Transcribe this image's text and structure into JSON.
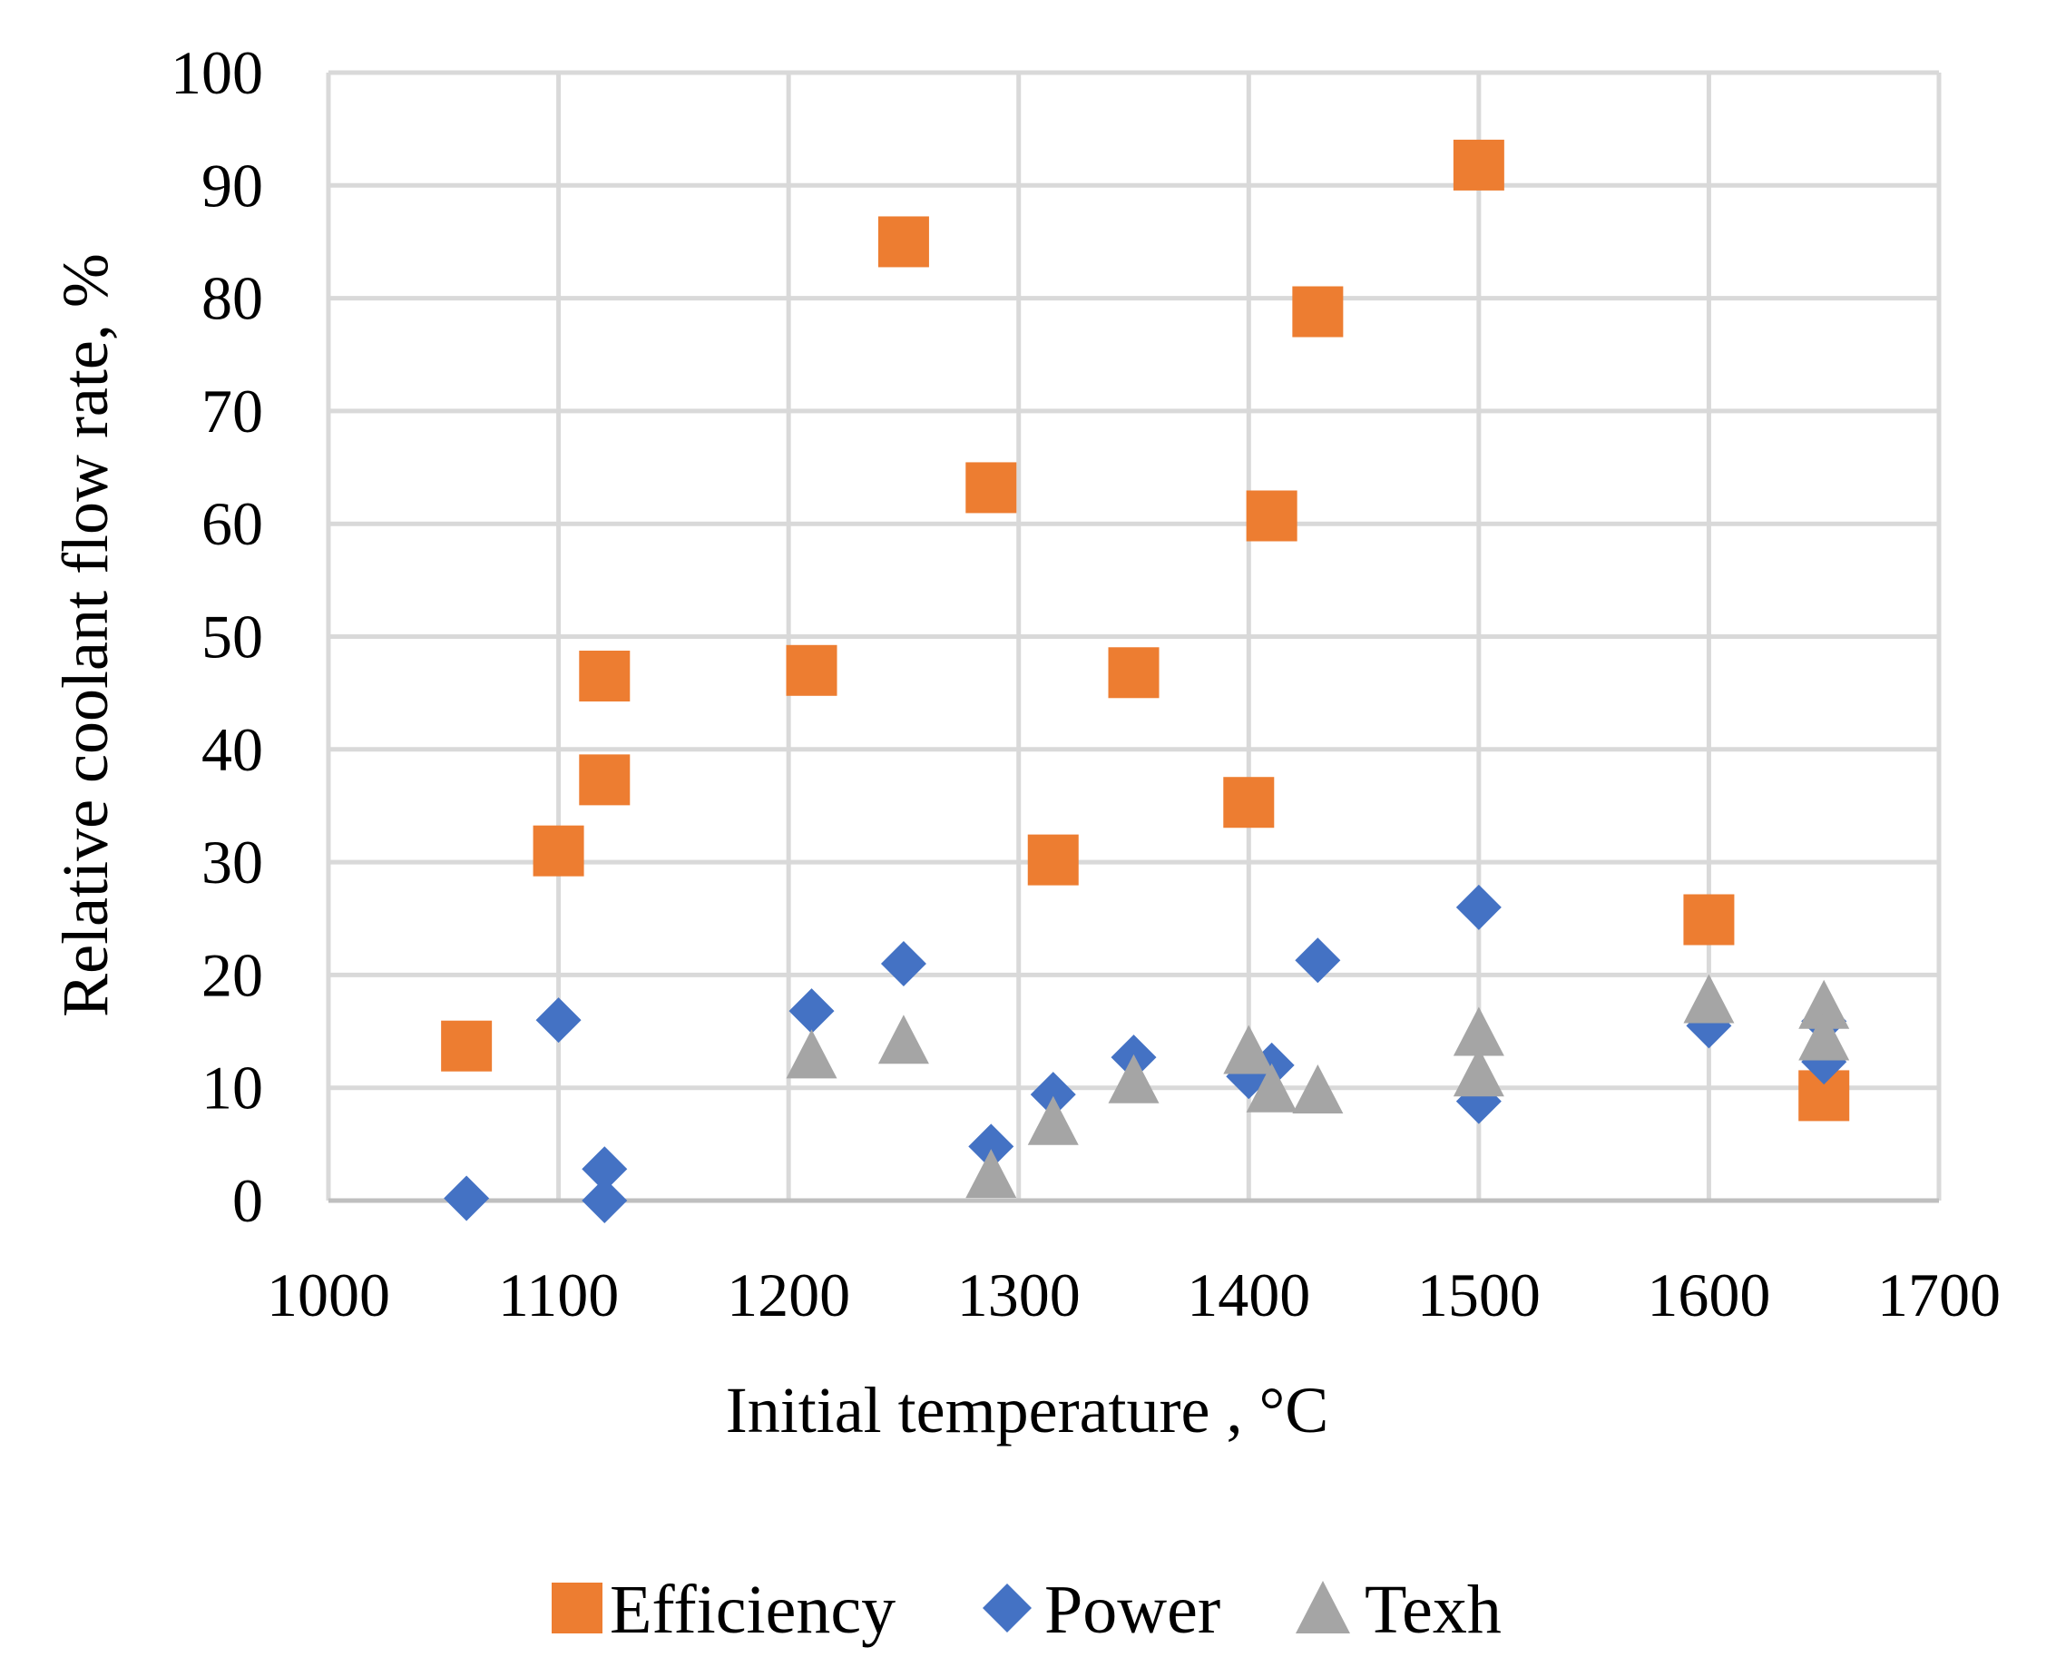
{
  "chart_data": {
    "type": "scatter",
    "title": "",
    "xlabel": "Initial temperature , °C",
    "ylabel": "Relative coolant flow rate, %",
    "xlim": [
      1000,
      1700
    ],
    "ylim": [
      0,
      100
    ],
    "x_ticks": [
      "1000",
      "1100",
      "1200",
      "1300",
      "1400",
      "1500",
      "1600",
      "1700"
    ],
    "y_ticks": [
      "0",
      "10",
      "20",
      "30",
      "40",
      "50",
      "60",
      "70",
      "80",
      "90",
      "100"
    ],
    "grid": true,
    "legend_position": "bottom",
    "series": [
      {
        "name": "Efficiency",
        "marker": "square",
        "color": "#ED7D31",
        "points": [
          [
            1060,
            13.7
          ],
          [
            1100,
            31
          ],
          [
            1120,
            46.5
          ],
          [
            1120,
            37.3
          ],
          [
            1210,
            47
          ],
          [
            1250,
            85
          ],
          [
            1288,
            63.2
          ],
          [
            1315,
            30.2
          ],
          [
            1350,
            46.8
          ],
          [
            1400,
            35.3
          ],
          [
            1410,
            60.7
          ],
          [
            1430,
            78.8
          ],
          [
            1500,
            91.8
          ],
          [
            1600,
            24.9
          ],
          [
            1650,
            9.3
          ]
        ]
      },
      {
        "name": "Power",
        "marker": "diamond",
        "color": "#4472C4",
        "points": [
          [
            1060,
            0.2
          ],
          [
            1100,
            16
          ],
          [
            1120,
            2.8
          ],
          [
            1120,
            0
          ],
          [
            1210,
            16.8
          ],
          [
            1250,
            21
          ],
          [
            1288,
            4.8
          ],
          [
            1315,
            9.4
          ],
          [
            1350,
            12.7
          ],
          [
            1400,
            11
          ],
          [
            1410,
            12
          ],
          [
            1430,
            21.3
          ],
          [
            1500,
            26
          ],
          [
            1500,
            8.8
          ],
          [
            1600,
            15.5
          ],
          [
            1650,
            15.9
          ],
          [
            1650,
            12.3
          ]
        ]
      },
      {
        "name": "Texh",
        "marker": "triangle",
        "color": "#A5A5A5",
        "points": [
          [
            1210,
            13
          ],
          [
            1250,
            14.3
          ],
          [
            1288,
            2.4
          ],
          [
            1315,
            7.1
          ],
          [
            1350,
            10.8
          ],
          [
            1400,
            13.4
          ],
          [
            1410,
            10
          ],
          [
            1430,
            9.9
          ],
          [
            1500,
            15
          ],
          [
            1500,
            11.4
          ],
          [
            1600,
            17.9
          ],
          [
            1650,
            17.4
          ],
          [
            1650,
            14.6
          ]
        ]
      }
    ]
  }
}
